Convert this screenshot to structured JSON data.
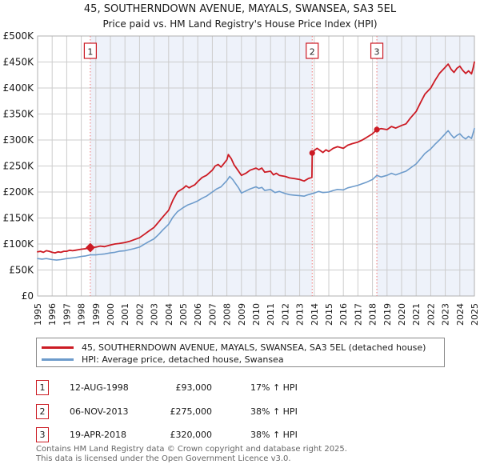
{
  "header": {
    "title": "45, SOUTHERNDOWN AVENUE, MAYALS, SWANSEA, SA3 5EL",
    "subtitle": "Price paid vs. HM Land Registry's House Price Index (HPI)"
  },
  "colors": {
    "accent_red": "#cc1b24",
    "hpi_blue": "#6d9bcb",
    "band": "#eef2fa",
    "grid": "#cccccc",
    "plot_border": "#b0b0b0",
    "dashed_sale_line": "#ee7777",
    "footer_text": "#666666"
  },
  "chart_data": {
    "type": "line",
    "title": "45, SOUTHERNDOWN AVENUE, MAYALS, SWANSEA, SA3 5EL",
    "subtitle": "Price paid vs. HM Land Registry's House Price Index (HPI)",
    "xlabel": "",
    "ylabel": "",
    "values_unit": "GBP_thousands",
    "x_axis": {
      "min": 1995,
      "max": 2025,
      "tick_labels": [
        "1995",
        "1996",
        "1997",
        "1998",
        "1999",
        "2000",
        "2001",
        "2002",
        "2003",
        "2004",
        "2005",
        "2006",
        "2007",
        "2008",
        "2009",
        "2010",
        "2011",
        "2012",
        "2013",
        "2014",
        "2015",
        "2016",
        "2017",
        "2018",
        "2019",
        "2020",
        "2021",
        "2022",
        "2023",
        "2024",
        "2025"
      ]
    },
    "y_axis": {
      "min": 0,
      "max": 500,
      "ticks": [
        {
          "v": 500,
          "label": "£500K"
        },
        {
          "v": 450,
          "label": "£450K"
        },
        {
          "v": 400,
          "label": "£400K"
        },
        {
          "v": 350,
          "label": "£350K"
        },
        {
          "v": 300,
          "label": "£300K"
        },
        {
          "v": 250,
          "label": "£250K"
        },
        {
          "v": 200,
          "label": "£200K"
        },
        {
          "v": 150,
          "label": "£150K"
        },
        {
          "v": 100,
          "label": "£100K"
        },
        {
          "v": 50,
          "label": "£50K"
        },
        {
          "v": 0,
          "label": "£0"
        }
      ]
    },
    "grid": true,
    "legend_position": "below",
    "ownership_bands": [
      [
        1998.62,
        2013.86
      ],
      [
        2018.3,
        2025
      ]
    ],
    "series": [
      {
        "name": "45, SOUTHERNDOWN AVENUE, MAYALS, SWANSEA, SA3 5EL (detached house)",
        "color": "#cc1b24",
        "points": [
          [
            1995.0,
            85
          ],
          [
            1995.2,
            86
          ],
          [
            1995.4,
            84
          ],
          [
            1995.6,
            87
          ],
          [
            1995.8,
            86
          ],
          [
            1996.0,
            84
          ],
          [
            1996.2,
            83
          ],
          [
            1996.4,
            85
          ],
          [
            1996.6,
            84
          ],
          [
            1996.8,
            86
          ],
          [
            1997.0,
            86
          ],
          [
            1997.2,
            88
          ],
          [
            1997.4,
            87
          ],
          [
            1997.6,
            88
          ],
          [
            1997.8,
            89
          ],
          [
            1998.0,
            90
          ],
          [
            1998.3,
            91
          ],
          [
            1998.62,
            93
          ],
          [
            1999.0,
            94
          ],
          [
            1999.3,
            96
          ],
          [
            1999.6,
            95
          ],
          [
            2000.0,
            98
          ],
          [
            2000.3,
            100
          ],
          [
            2000.6,
            101
          ],
          [
            2001.0,
            103
          ],
          [
            2001.3,
            105
          ],
          [
            2001.6,
            108
          ],
          [
            2002.0,
            112
          ],
          [
            2002.3,
            118
          ],
          [
            2002.6,
            124
          ],
          [
            2003.0,
            132
          ],
          [
            2003.3,
            142
          ],
          [
            2003.6,
            152
          ],
          [
            2004.0,
            165
          ],
          [
            2004.3,
            185
          ],
          [
            2004.6,
            200
          ],
          [
            2005.0,
            207
          ],
          [
            2005.2,
            212
          ],
          [
            2005.4,
            208
          ],
          [
            2005.6,
            211
          ],
          [
            2005.8,
            214
          ],
          [
            2006.0,
            220
          ],
          [
            2006.3,
            228
          ],
          [
            2006.6,
            232
          ],
          [
            2007.0,
            242
          ],
          [
            2007.2,
            250
          ],
          [
            2007.4,
            253
          ],
          [
            2007.6,
            248
          ],
          [
            2007.8,
            255
          ],
          [
            2008.0,
            262
          ],
          [
            2008.1,
            272
          ],
          [
            2008.3,
            264
          ],
          [
            2008.5,
            252
          ],
          [
            2008.75,
            242
          ],
          [
            2009.0,
            232
          ],
          [
            2009.3,
            236
          ],
          [
            2009.6,
            242
          ],
          [
            2010.0,
            246
          ],
          [
            2010.2,
            243
          ],
          [
            2010.4,
            246
          ],
          [
            2010.6,
            238
          ],
          [
            2011.0,
            240
          ],
          [
            2011.2,
            233
          ],
          [
            2011.4,
            236
          ],
          [
            2011.6,
            232
          ],
          [
            2012.0,
            230
          ],
          [
            2012.3,
            227
          ],
          [
            2012.6,
            226
          ],
          [
            2013.0,
            224
          ],
          [
            2013.3,
            221
          ],
          [
            2013.6,
            226
          ],
          [
            2013.84,
            228
          ],
          [
            2013.86,
            275
          ],
          [
            2014.0,
            280
          ],
          [
            2014.2,
            284
          ],
          [
            2014.4,
            280
          ],
          [
            2014.6,
            276
          ],
          [
            2014.8,
            281
          ],
          [
            2015.0,
            278
          ],
          [
            2015.3,
            284
          ],
          [
            2015.6,
            287
          ],
          [
            2016.0,
            284
          ],
          [
            2016.3,
            290
          ],
          [
            2016.6,
            293
          ],
          [
            2017.0,
            296
          ],
          [
            2017.3,
            300
          ],
          [
            2017.6,
            305
          ],
          [
            2018.0,
            312
          ],
          [
            2018.3,
            320
          ],
          [
            2018.6,
            322
          ],
          [
            2019.0,
            320
          ],
          [
            2019.3,
            326
          ],
          [
            2019.6,
            323
          ],
          [
            2020.0,
            328
          ],
          [
            2020.3,
            331
          ],
          [
            2020.6,
            342
          ],
          [
            2021.0,
            355
          ],
          [
            2021.3,
            372
          ],
          [
            2021.6,
            388
          ],
          [
            2022.0,
            400
          ],
          [
            2022.3,
            415
          ],
          [
            2022.6,
            428
          ],
          [
            2023.0,
            440
          ],
          [
            2023.2,
            446
          ],
          [
            2023.4,
            436
          ],
          [
            2023.6,
            430
          ],
          [
            2023.8,
            438
          ],
          [
            2024.0,
            442
          ],
          [
            2024.2,
            434
          ],
          [
            2024.4,
            428
          ],
          [
            2024.6,
            433
          ],
          [
            2024.8,
            427
          ],
          [
            2024.9,
            437
          ],
          [
            2025.0,
            450
          ]
        ]
      },
      {
        "name": "HPI: Average price, detached house, Swansea",
        "color": "#6d9bcb",
        "points": [
          [
            1995.0,
            72
          ],
          [
            1995.3,
            71
          ],
          [
            1995.6,
            72
          ],
          [
            1996.0,
            70
          ],
          [
            1996.3,
            69
          ],
          [
            1996.6,
            70
          ],
          [
            1997.0,
            72
          ],
          [
            1997.3,
            73
          ],
          [
            1997.6,
            74
          ],
          [
            1998.0,
            76
          ],
          [
            1998.3,
            77
          ],
          [
            1998.62,
            79
          ],
          [
            1999.0,
            79
          ],
          [
            1999.3,
            80
          ],
          [
            1999.6,
            81
          ],
          [
            2000.0,
            83
          ],
          [
            2000.3,
            84
          ],
          [
            2000.6,
            86
          ],
          [
            2001.0,
            87
          ],
          [
            2001.3,
            89
          ],
          [
            2001.6,
            91
          ],
          [
            2002.0,
            94
          ],
          [
            2002.3,
            99
          ],
          [
            2002.6,
            104
          ],
          [
            2003.0,
            110
          ],
          [
            2003.3,
            118
          ],
          [
            2003.6,
            127
          ],
          [
            2004.0,
            138
          ],
          [
            2004.3,
            152
          ],
          [
            2004.6,
            162
          ],
          [
            2005.0,
            170
          ],
          [
            2005.3,
            175
          ],
          [
            2005.6,
            178
          ],
          [
            2006.0,
            183
          ],
          [
            2006.3,
            188
          ],
          [
            2006.6,
            192
          ],
          [
            2007.0,
            200
          ],
          [
            2007.3,
            206
          ],
          [
            2007.6,
            210
          ],
          [
            2008.0,
            222
          ],
          [
            2008.2,
            230
          ],
          [
            2008.4,
            224
          ],
          [
            2008.6,
            216
          ],
          [
            2008.8,
            208
          ],
          [
            2009.0,
            198
          ],
          [
            2009.3,
            202
          ],
          [
            2009.6,
            206
          ],
          [
            2010.0,
            210
          ],
          [
            2010.2,
            207
          ],
          [
            2010.4,
            209
          ],
          [
            2010.6,
            203
          ],
          [
            2011.0,
            205
          ],
          [
            2011.3,
            199
          ],
          [
            2011.6,
            201
          ],
          [
            2012.0,
            197
          ],
          [
            2012.3,
            195
          ],
          [
            2012.6,
            194
          ],
          [
            2013.0,
            193
          ],
          [
            2013.3,
            192
          ],
          [
            2013.6,
            195
          ],
          [
            2014.0,
            198
          ],
          [
            2014.3,
            201
          ],
          [
            2014.6,
            199
          ],
          [
            2015.0,
            200
          ],
          [
            2015.3,
            203
          ],
          [
            2015.6,
            205
          ],
          [
            2016.0,
            204
          ],
          [
            2016.3,
            208
          ],
          [
            2016.6,
            210
          ],
          [
            2017.0,
            213
          ],
          [
            2017.3,
            216
          ],
          [
            2017.6,
            219
          ],
          [
            2018.0,
            224
          ],
          [
            2018.3,
            232
          ],
          [
            2018.6,
            229
          ],
          [
            2019.0,
            232
          ],
          [
            2019.3,
            236
          ],
          [
            2019.6,
            233
          ],
          [
            2020.0,
            237
          ],
          [
            2020.3,
            240
          ],
          [
            2020.6,
            246
          ],
          [
            2021.0,
            254
          ],
          [
            2021.3,
            264
          ],
          [
            2021.6,
            274
          ],
          [
            2022.0,
            283
          ],
          [
            2022.3,
            292
          ],
          [
            2022.6,
            300
          ],
          [
            2023.0,
            312
          ],
          [
            2023.2,
            318
          ],
          [
            2023.4,
            310
          ],
          [
            2023.6,
            304
          ],
          [
            2023.8,
            309
          ],
          [
            2024.0,
            312
          ],
          [
            2024.2,
            306
          ],
          [
            2024.4,
            302
          ],
          [
            2024.6,
            307
          ],
          [
            2024.8,
            303
          ],
          [
            2025.0,
            322
          ]
        ]
      }
    ],
    "sales": [
      {
        "label": "1",
        "year": 1998.62,
        "price_k": 93,
        "marker": "diamond"
      },
      {
        "label": "2",
        "year": 2013.86,
        "price_k": 275,
        "marker": "circle"
      },
      {
        "label": "3",
        "year": 2018.3,
        "price_k": 320,
        "marker": "circle"
      }
    ]
  },
  "legend": {
    "items": [
      {
        "label": "45, SOUTHERNDOWN AVENUE, MAYALS, SWANSEA, SA3 5EL (detached house)"
      },
      {
        "label": "HPI: Average price, detached house, Swansea"
      }
    ]
  },
  "table": {
    "rows": [
      {
        "num": "1",
        "date": "12-AUG-1998",
        "price": "£93,000",
        "hpi": "17% ↑ HPI"
      },
      {
        "num": "2",
        "date": "06-NOV-2013",
        "price": "£275,000",
        "hpi": "38% ↑ HPI"
      },
      {
        "num": "3",
        "date": "19-APR-2018",
        "price": "£320,000",
        "hpi": "38% ↑ HPI"
      }
    ]
  },
  "footer": {
    "line1": "Contains HM Land Registry data © Crown copyright and database right 2025.",
    "line2": "This data is licensed under the Open Government Licence v3.0."
  }
}
